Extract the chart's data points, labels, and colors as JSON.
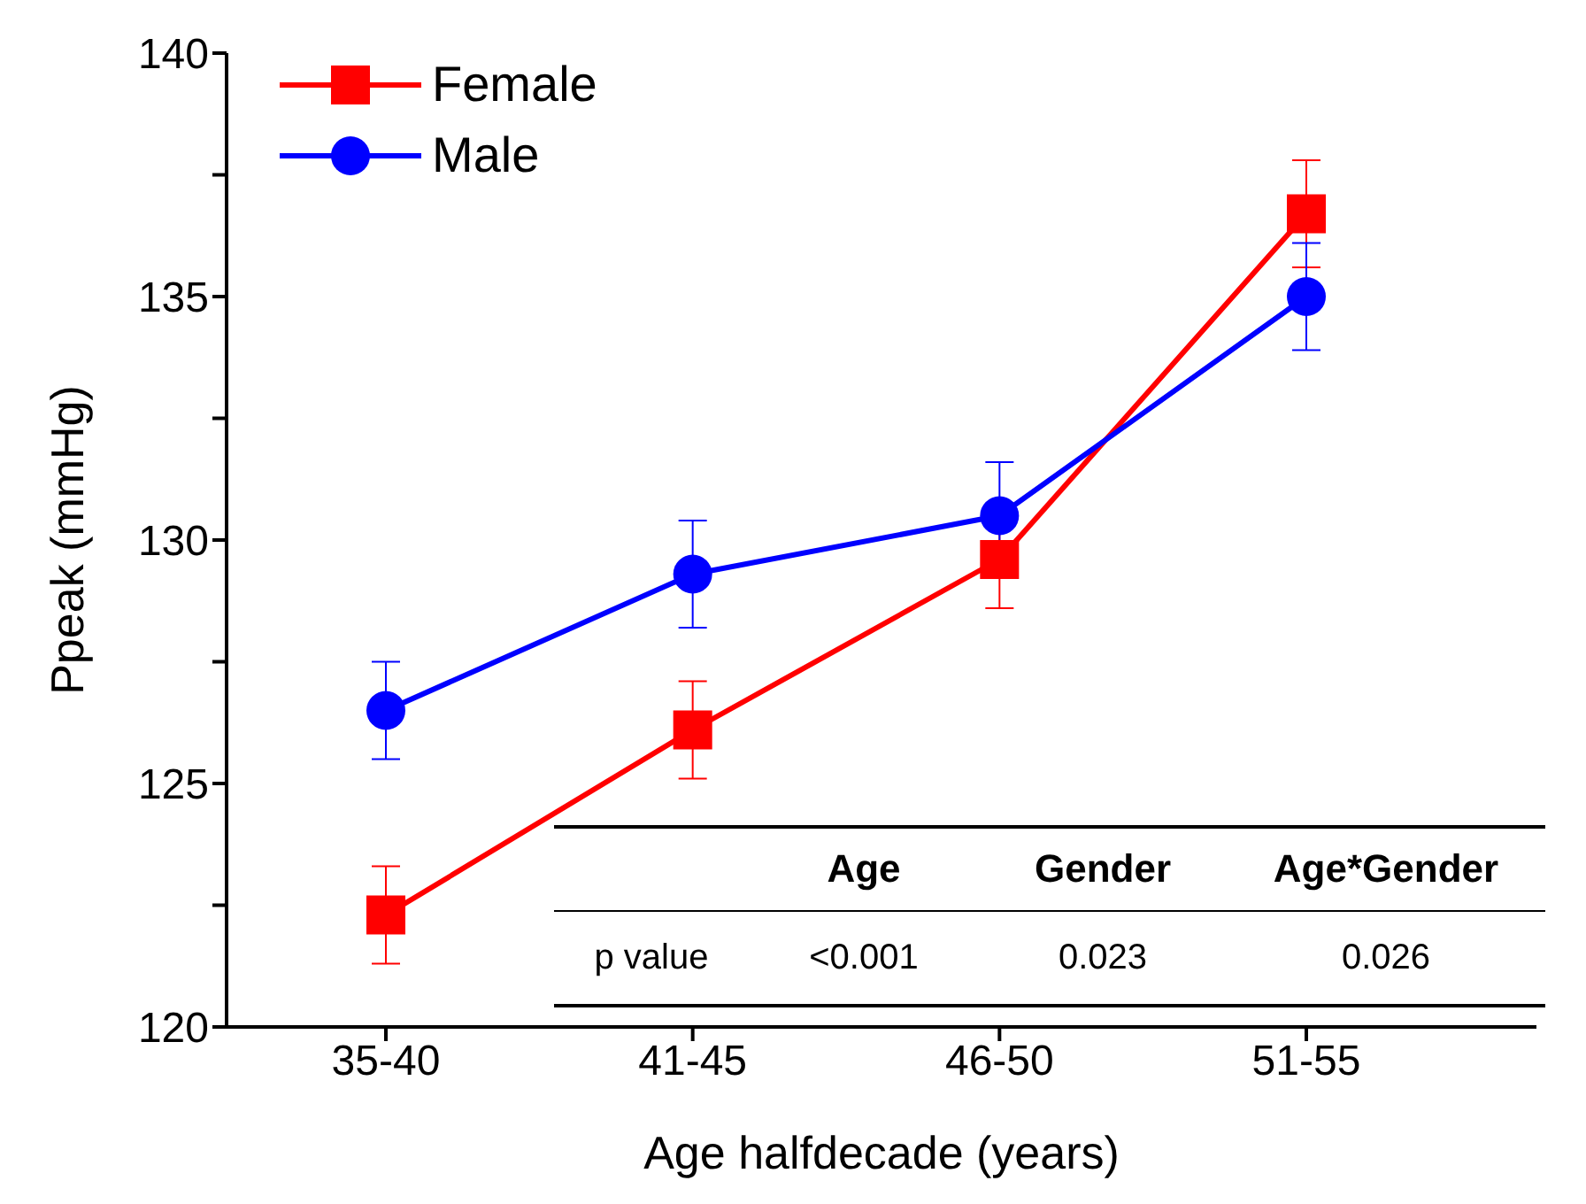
{
  "chart_data": {
    "type": "line",
    "xlabel": "Age halfdecade (years)",
    "ylabel": "Ppeak (mmHg)",
    "categories": [
      "35-40",
      "41-45",
      "46-50",
      "51-55"
    ],
    "series": [
      {
        "name": "Female",
        "color": "#ff0000",
        "marker": "square",
        "values": [
          122.3,
          126.1,
          129.6,
          136.7
        ],
        "errors": [
          1.0,
          1.0,
          1.0,
          1.1
        ]
      },
      {
        "name": "Male",
        "color": "#0000ff",
        "marker": "circle",
        "values": [
          126.5,
          129.3,
          130.5,
          135.0
        ],
        "errors": [
          1.0,
          1.1,
          1.1,
          1.1
        ]
      }
    ],
    "ylim": [
      120,
      140
    ],
    "yticks": [
      120,
      {
        "value": 122.5,
        "label": null
      },
      125,
      {
        "value": 127.5,
        "label": null
      },
      130,
      {
        "value": 132.5,
        "label": null
      },
      135,
      {
        "value": 137.5,
        "label": null
      },
      140
    ],
    "grid": false,
    "legend": "top left",
    "line_style": "solid",
    "annotations": [
      "Age",
      "Gender",
      "Age*Gender",
      "p value",
      "<0.001",
      "0.023",
      "0.026"
    ]
  }
}
